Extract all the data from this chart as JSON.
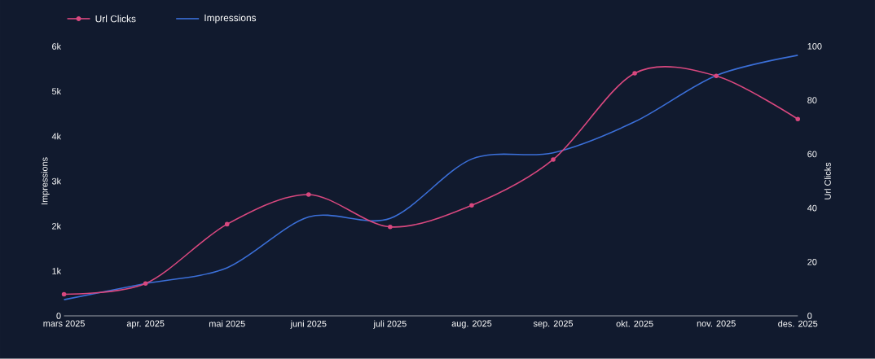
{
  "chart_data": {
    "type": "line",
    "categories": [
      "mars 2025",
      "apr. 2025",
      "mai 2025",
      "juni 2025",
      "juli 2025",
      "aug. 2025",
      "sep. 2025",
      "okt. 2025",
      "nov. 2025",
      "des. 2025"
    ],
    "series": [
      {
        "name": "Url Clicks",
        "color": "#d9487f",
        "axis": "y2",
        "marker": "circle",
        "values": [
          8,
          12,
          34,
          45,
          33,
          41,
          58,
          90,
          89,
          73
        ]
      },
      {
        "name": "Impressions",
        "color": "#3b6fd8",
        "axis": "y",
        "marker": "none",
        "values": [
          360,
          720,
          1070,
          2200,
          2170,
          3490,
          3630,
          4320,
          5350,
          5800
        ]
      }
    ],
    "ylabel": "Impressions",
    "y2label": "Url Clicks",
    "ylim": [
      0,
      6000
    ],
    "yticks": [
      0,
      {
        "value": 1000,
        "label": "1k"
      },
      {
        "value": 2000,
        "label": "2k"
      },
      {
        "value": 3000,
        "label": "3k"
      },
      {
        "value": 4000,
        "label": "4k"
      },
      {
        "value": 5000,
        "label": "5k"
      },
      {
        "value": 6000,
        "label": "6k"
      }
    ],
    "y2lim": [
      0,
      100
    ],
    "y2ticks": [
      0,
      20,
      40,
      60,
      80,
      100
    ],
    "grid": false,
    "legend": "top left"
  }
}
